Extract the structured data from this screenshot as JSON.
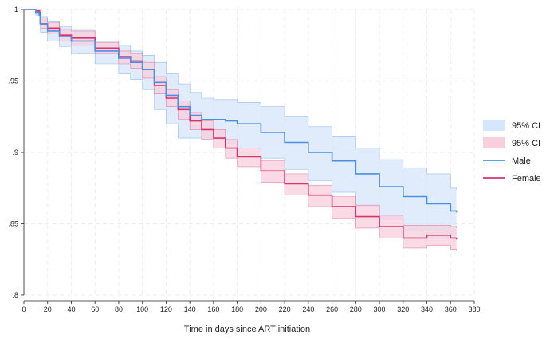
{
  "chart_data": {
    "type": "line",
    "title": "",
    "xlabel": "Time in days since ART initiation",
    "ylabel": "",
    "xlim": [
      0,
      380
    ],
    "ylim": [
      0.8,
      1.0
    ],
    "grid": true,
    "legend_position": "right",
    "x_ticks": [
      0,
      20,
      40,
      60,
      80,
      100,
      120,
      140,
      160,
      180,
      200,
      220,
      240,
      260,
      280,
      300,
      320,
      340,
      360,
      380
    ],
    "x_tick_labels": [
      "0",
      "20",
      "40",
      "60",
      "80",
      "100",
      "120",
      "140",
      "160",
      "180",
      "200",
      "220",
      "240",
      "260",
      "280",
      "300",
      "320",
      "340",
      "360",
      "380"
    ],
    "y_ticks": [
      0.8,
      0.85,
      0.9,
      0.95,
      1.0
    ],
    "y_tick_labels": [
      ".8",
      ".85",
      ".9",
      ".95",
      "1"
    ],
    "series": [
      {
        "name": "Male",
        "color": "#4a90e2",
        "ci_label": "95% CI",
        "ci_color": "#d6e6fb",
        "x": [
          0,
          10,
          13,
          14,
          20,
          30,
          40,
          60,
          80,
          90,
          100,
          110,
          120,
          130,
          140,
          150,
          160,
          170,
          180,
          200,
          220,
          240,
          260,
          280,
          300,
          320,
          340,
          360,
          365
        ],
        "y": [
          1.0,
          0.998,
          0.996,
          0.99,
          0.985,
          0.981,
          0.978,
          0.971,
          0.966,
          0.963,
          0.958,
          0.949,
          0.94,
          0.932,
          0.926,
          0.923,
          0.923,
          0.922,
          0.92,
          0.914,
          0.907,
          0.9,
          0.894,
          0.885,
          0.876,
          0.869,
          0.864,
          0.859,
          0.858
        ],
        "lower": [
          1.0,
          0.996,
          0.99,
          0.984,
          0.978,
          0.974,
          0.969,
          0.962,
          0.955,
          0.951,
          0.944,
          0.93,
          0.92,
          0.91,
          0.91,
          0.909,
          0.909,
          0.906,
          0.903,
          0.896,
          0.888,
          0.88,
          0.872,
          0.862,
          0.853,
          0.845,
          0.84,
          0.843,
          0.842
        ],
        "upper": [
          1.0,
          0.999,
          0.999,
          0.995,
          0.992,
          0.988,
          0.986,
          0.978,
          0.975,
          0.971,
          0.968,
          0.963,
          0.955,
          0.948,
          0.942,
          0.938,
          0.937,
          0.937,
          0.935,
          0.932,
          0.925,
          0.918,
          0.911,
          0.903,
          0.895,
          0.889,
          0.885,
          0.875,
          0.874
        ]
      },
      {
        "name": "Female",
        "color": "#d6336c",
        "ci_label": "95% CI",
        "ci_color": "#f8cfdc",
        "x": [
          0,
          10,
          13,
          14,
          20,
          30,
          40,
          60,
          80,
          90,
          100,
          110,
          120,
          130,
          140,
          150,
          160,
          170,
          180,
          200,
          220,
          240,
          260,
          280,
          300,
          320,
          340,
          360,
          365
        ],
        "y": [
          1.0,
          0.999,
          0.998,
          0.99,
          0.987,
          0.982,
          0.98,
          0.973,
          0.967,
          0.964,
          0.958,
          0.947,
          0.938,
          0.93,
          0.922,
          0.916,
          0.91,
          0.903,
          0.897,
          0.887,
          0.878,
          0.87,
          0.862,
          0.855,
          0.848,
          0.84,
          0.842,
          0.84,
          0.839
        ],
        "lower": [
          1.0,
          0.998,
          0.996,
          0.987,
          0.983,
          0.978,
          0.975,
          0.969,
          0.962,
          0.959,
          0.952,
          0.941,
          0.932,
          0.923,
          0.916,
          0.909,
          0.903,
          0.896,
          0.89,
          0.879,
          0.87,
          0.862,
          0.854,
          0.847,
          0.84,
          0.833,
          0.835,
          0.832,
          0.831
        ],
        "upper": [
          1.0,
          1.0,
          1.0,
          0.994,
          0.991,
          0.986,
          0.985,
          0.977,
          0.971,
          0.969,
          0.963,
          0.953,
          0.944,
          0.936,
          0.928,
          0.922,
          0.916,
          0.909,
          0.903,
          0.894,
          0.885,
          0.877,
          0.869,
          0.863,
          0.856,
          0.849,
          0.849,
          0.848,
          0.847
        ]
      }
    ]
  }
}
